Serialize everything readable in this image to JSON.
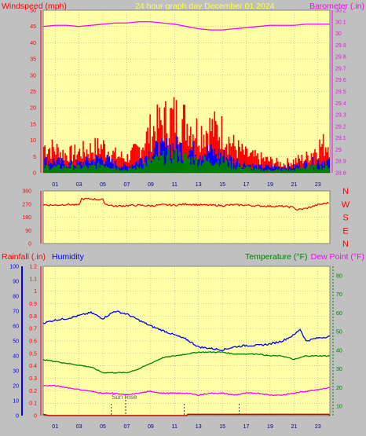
{
  "header": {
    "left_label": "Windspeed (mph)",
    "center_label": "24 hour graph day   December 01 2024",
    "right_label": "Barometer (.in)"
  },
  "colors": {
    "background": "#c0c0c0",
    "plot_bg": "#ffffa8",
    "grid": "#9a9a9a",
    "red": "#ff0000",
    "blue": "#0000ff",
    "green": "#008000",
    "magenta": "#ff00ff",
    "dark_red": "#cc0000",
    "title_yellow": "#ffff40"
  },
  "x_ticks": [
    "01",
    "03",
    "05",
    "07",
    "09",
    "11",
    "13",
    "15",
    "17",
    "19",
    "21",
    "23"
  ],
  "chart_data": [
    {
      "type": "line",
      "panel": "wind-barometer",
      "x_range": [
        0,
        24
      ],
      "left_axis": {
        "label": "Windspeed (mph)",
        "ticks": [
          0,
          5,
          10,
          15,
          20,
          25,
          30,
          35,
          40,
          45,
          50
        ],
        "ylim": [
          0,
          50
        ]
      },
      "right_axis": {
        "label": "Barometer (.in)",
        "ticks": [
          "28.8",
          "28.9",
          "29",
          "29.1",
          "29.2",
          "29.3",
          "29.4",
          "29.5",
          "29.6",
          "29.7",
          "29.8",
          "29.9",
          "30",
          "30.1",
          "30.2"
        ],
        "ylim": [
          28.8,
          30.2
        ]
      },
      "series": [
        {
          "name": "Barometer",
          "axis": "right",
          "color": "magenta",
          "x": [
            0,
            1,
            2,
            3,
            4,
            5,
            6,
            7,
            8,
            9,
            10,
            11,
            12,
            13,
            14,
            15,
            16,
            17,
            18,
            19,
            20,
            21,
            22,
            23,
            24
          ],
          "values": [
            30.06,
            30.07,
            30.07,
            30.06,
            30.07,
            30.08,
            30.09,
            30.09,
            30.1,
            30.1,
            30.09,
            30.08,
            30.06,
            30.04,
            30.03,
            30.03,
            30.04,
            30.05,
            30.06,
            30.07,
            30.07,
            30.07,
            30.08,
            30.08,
            30.08
          ]
        },
        {
          "name": "Gust",
          "axis": "left",
          "color": "red",
          "x": [
            0,
            1,
            2,
            3,
            4,
            5,
            6,
            7,
            8,
            9,
            10,
            11,
            12,
            13,
            14,
            15,
            16,
            17,
            18,
            19,
            20,
            21,
            22,
            23,
            24
          ],
          "values": [
            9,
            8,
            6,
            7,
            8,
            9,
            6,
            5,
            8,
            14,
            17,
            19,
            17,
            14,
            15,
            14,
            9,
            6,
            5,
            4,
            3,
            4,
            5,
            9,
            10
          ]
        },
        {
          "name": "Average",
          "axis": "left",
          "color": "blue",
          "x": [
            0,
            1,
            2,
            3,
            4,
            5,
            6,
            7,
            8,
            9,
            10,
            11,
            12,
            13,
            14,
            15,
            16,
            17,
            18,
            19,
            20,
            21,
            22,
            23,
            24
          ],
          "values": [
            4,
            4,
            3,
            3,
            4,
            5,
            3,
            2,
            4,
            7,
            8,
            9,
            8,
            7,
            7,
            6,
            4,
            3,
            2,
            2,
            2,
            2,
            3,
            4,
            4
          ]
        },
        {
          "name": "Wind",
          "axis": "left",
          "color": "green",
          "x": [
            0,
            1,
            2,
            3,
            4,
            5,
            6,
            7,
            8,
            9,
            10,
            11,
            12,
            13,
            14,
            15,
            16,
            17,
            18,
            19,
            20,
            21,
            22,
            23,
            24
          ],
          "values": [
            2,
            2,
            2,
            2,
            2,
            3,
            2,
            1,
            2,
            4,
            5,
            6,
            5,
            4,
            4,
            4,
            2,
            2,
            1,
            1,
            1,
            1,
            2,
            2,
            2
          ]
        }
      ]
    },
    {
      "type": "line",
      "panel": "wind-direction",
      "x_range": [
        0,
        24
      ],
      "left_axis": {
        "ticks": [
          0,
          90,
          180,
          270,
          360
        ],
        "ylim": [
          0,
          360
        ]
      },
      "right_labels": [
        "N",
        "W",
        "S",
        "E",
        "N"
      ],
      "series": [
        {
          "name": "Direction",
          "color": "red",
          "x": [
            0,
            1,
            2,
            3,
            3.2,
            4,
            5,
            5.2,
            6,
            7,
            8,
            9,
            10,
            11,
            12,
            13,
            14,
            15,
            16,
            17,
            18,
            19,
            20,
            21,
            21.2,
            22,
            23,
            24
          ],
          "values": [
            265,
            262,
            268,
            262,
            305,
            305,
            300,
            270,
            255,
            260,
            262,
            258,
            265,
            262,
            270,
            265,
            262,
            260,
            265,
            262,
            258,
            255,
            255,
            248,
            230,
            240,
            265,
            280
          ]
        }
      ]
    },
    {
      "type": "line",
      "panel": "rain-humidity-temperature",
      "x_range": [
        0,
        24
      ],
      "left_axis_humidity": {
        "label": "Humidity",
        "ticks": [
          0,
          10,
          20,
          30,
          40,
          50,
          60,
          70,
          80,
          90,
          100
        ],
        "ylim": [
          0,
          100
        ]
      },
      "left_axis_rain": {
        "label": "Rainfall (.in)",
        "ticks": [
          "0",
          "0.1",
          "0.2",
          "0.3",
          "0.4",
          "0.5",
          "0.6",
          "0.7",
          "0.8",
          "0.9",
          "1",
          "1.1",
          "1.2"
        ],
        "ylim": [
          0,
          1.2
        ]
      },
      "right_axis": {
        "label": "Temperature (°F)",
        "label2": "Dew Point (°F)",
        "ticks": [
          10,
          20,
          30,
          40,
          50,
          60,
          70,
          80
        ],
        "ylim": [
          5,
          85
        ]
      },
      "annotation": "Sun Rise",
      "series": [
        {
          "name": "Humidity",
          "axis": "humidity",
          "color": "blue",
          "x": [
            0,
            1,
            2,
            3,
            4,
            5,
            6,
            7,
            8,
            9,
            10,
            11,
            12,
            13,
            14,
            15,
            16,
            17,
            18,
            19,
            20,
            21,
            21.5,
            22,
            23,
            24
          ],
          "values": [
            62,
            64,
            65,
            67,
            69,
            65,
            70,
            68,
            64,
            60,
            57,
            54,
            51,
            46,
            45,
            44,
            46,
            47,
            47,
            48,
            50,
            54,
            58,
            50,
            52,
            53
          ]
        },
        {
          "name": "Temperature",
          "axis": "temp",
          "color": "green",
          "x": [
            0,
            1,
            2,
            3,
            4,
            5,
            6,
            7,
            8,
            9,
            10,
            11,
            12,
            13,
            14,
            15,
            16,
            17,
            18,
            19,
            20,
            21,
            22,
            23,
            24
          ],
          "values": [
            35,
            34,
            33,
            32,
            31,
            28,
            28,
            28,
            30,
            33,
            36,
            37,
            38,
            39,
            39,
            39,
            38,
            38,
            38,
            37,
            37,
            35,
            37,
            37,
            37
          ]
        },
        {
          "name": "Dew Point",
          "axis": "temp",
          "color": "magenta",
          "x": [
            0,
            1,
            2,
            3,
            4,
            5,
            6,
            7,
            8,
            9,
            10,
            11,
            12,
            13,
            14,
            15,
            16,
            17,
            18,
            19,
            20,
            21,
            22,
            23,
            24
          ],
          "values": [
            21,
            21,
            20,
            19,
            18,
            17,
            17,
            16,
            17,
            18,
            17,
            17,
            17,
            16,
            17,
            17,
            16,
            17,
            17,
            16,
            16,
            17,
            18,
            19,
            20
          ]
        },
        {
          "name": "Rainfall",
          "axis": "rain",
          "color": "dark_red",
          "x": [
            0,
            0.5,
            5.5,
            6,
            12,
            12.1,
            23.9,
            24
          ],
          "values": [
            0.01,
            0.0,
            0.0,
            0.0,
            0.0,
            0.01,
            0.01,
            0.0
          ]
        }
      ]
    }
  ]
}
